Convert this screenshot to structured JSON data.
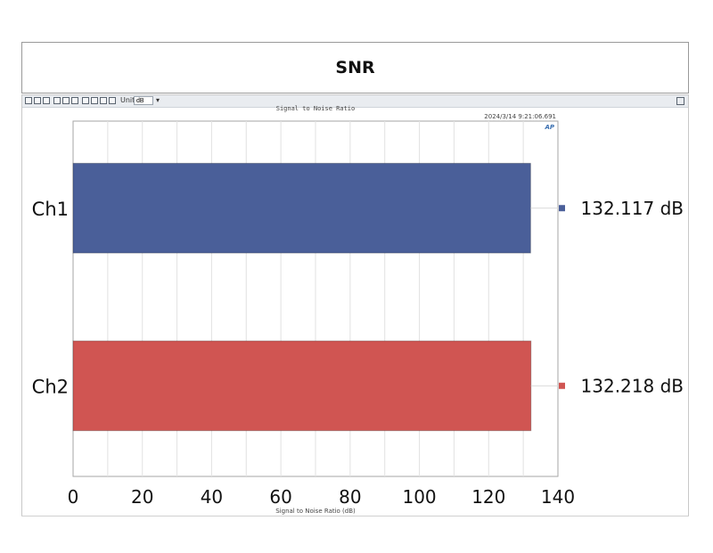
{
  "header": {
    "title": "SNR"
  },
  "toolbar": {
    "unit_label": "Unit",
    "unit_value": "dB"
  },
  "chart_header": {
    "title": "Signal to Noise Ratio",
    "timestamp": "2024/3/14 9:21:06.691",
    "logo_text": "AP"
  },
  "chart_data": {
    "type": "bar",
    "orientation": "horizontal",
    "title": "Signal to Noise Ratio",
    "xlabel": "Signal to Noise Ratio (dB)",
    "categories": [
      "Ch1",
      "Ch2"
    ],
    "values": [
      132.117,
      132.218
    ],
    "value_labels": [
      "132.117 dB",
      "132.218 dB"
    ],
    "colors": [
      "#4a5f99",
      "#d05552"
    ],
    "xlim": [
      0,
      140
    ],
    "xticks": [
      0,
      20,
      40,
      60,
      80,
      100,
      120,
      140
    ],
    "grid": true,
    "legend": "right"
  }
}
